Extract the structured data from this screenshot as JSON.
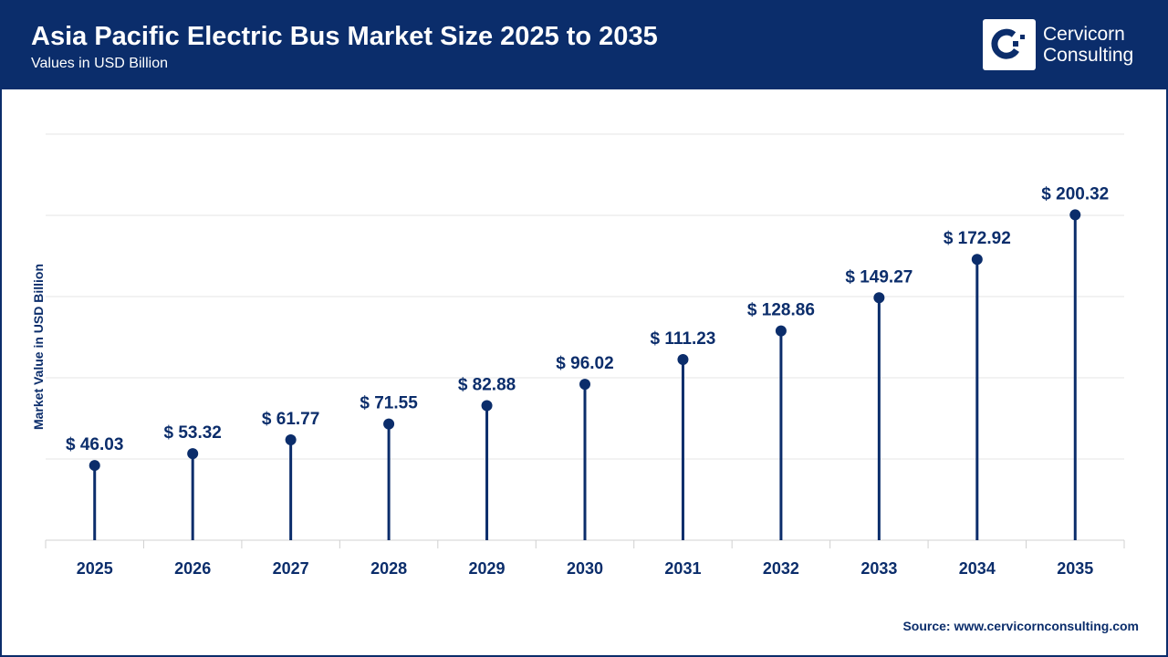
{
  "header": {
    "title": "Asia Pacific Electric Bus Market Size 2025 to 2035",
    "subtitle": "Values in USD Billion",
    "logo_text_1": "Cervicorn",
    "logo_text_2": "Consulting"
  },
  "source": "Source: www.cervicornconsulting.com",
  "colors": {
    "primary": "#0b2d6b",
    "grid": "#e6e6e6"
  },
  "chart_data": {
    "type": "lollipop",
    "title": "Asia Pacific Electric Bus Market Size 2025 to 2035",
    "subtitle": "Values in USD Billion",
    "xlabel": "",
    "ylabel": "Market Value in USD Billion",
    "categories": [
      "2025",
      "2026",
      "2027",
      "2028",
      "2029",
      "2030",
      "2031",
      "2032",
      "2033",
      "2034",
      "2035"
    ],
    "values": [
      46.03,
      53.32,
      61.77,
      71.55,
      82.88,
      96.02,
      111.23,
      128.86,
      149.27,
      172.92,
      200.32
    ],
    "data_labels": [
      "$ 46.03",
      "$ 53.32",
      "$ 61.77",
      "$ 71.55",
      "$ 82.88",
      "$ 96.02",
      "$ 111.23",
      "$ 128.86",
      "$ 149.27",
      "$ 172.92",
      "$ 200.32"
    ],
    "ylim": [
      0,
      250
    ],
    "grid": true
  }
}
